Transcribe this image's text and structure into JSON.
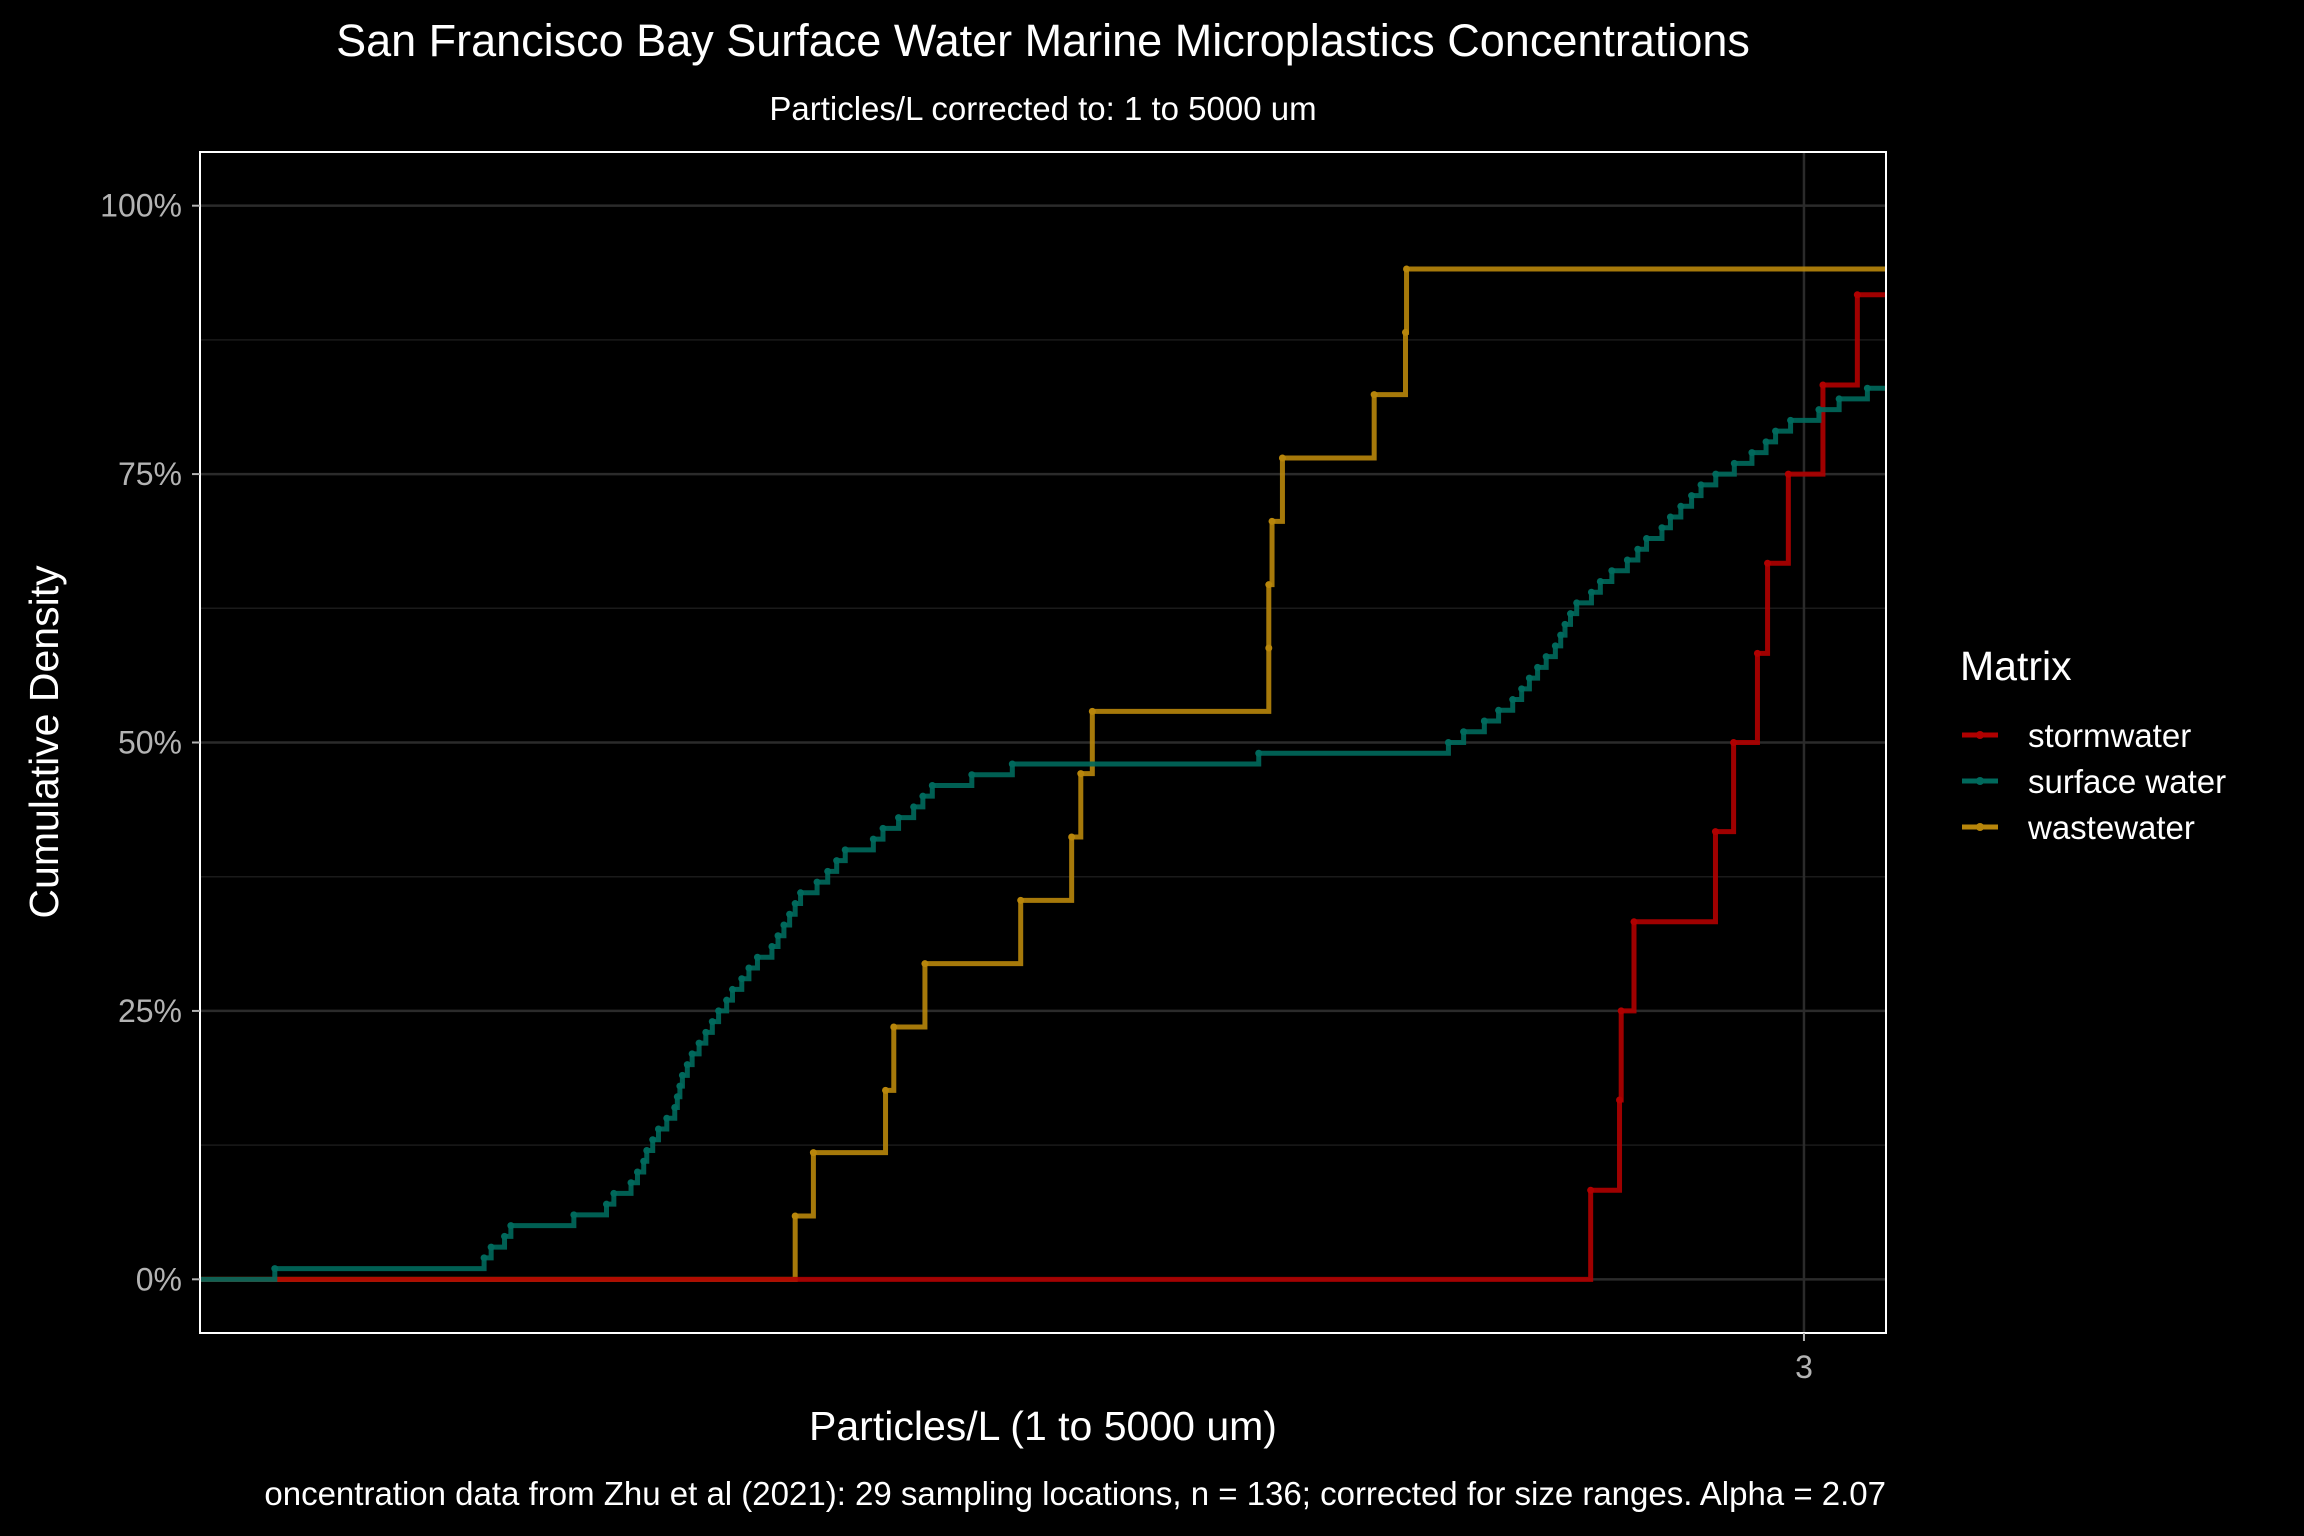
{
  "chart_data": {
    "type": "line",
    "title": "San Francisco Bay Surface Water Marine Microplastics Concentrations",
    "subtitle": "Particles/L corrected to: 1 to 5000 um",
    "xlabel": "Particles/L (1 to 5000 um)",
    "ylabel": "Cumulative Density",
    "caption": "oncentration data from Zhu et al (2021): 29 sampling locations, n = 136; corrected for size ranges. Alpha =  2.07",
    "x_scale": "log10",
    "xlim": [
      0.00057,
      4.65
    ],
    "ylim": [
      -0.05,
      1.05
    ],
    "x_ticks": [
      {
        "value": 3,
        "label": "3"
      }
    ],
    "y_ticks": [
      {
        "value": 0,
        "label": "0%"
      },
      {
        "value": 0.25,
        "label": "25%"
      },
      {
        "value": 0.5,
        "label": "50%"
      },
      {
        "value": 0.75,
        "label": "75%"
      },
      {
        "value": 1,
        "label": "100%"
      }
    ],
    "grid": true,
    "legend": {
      "title": "Matrix",
      "position": "right"
    },
    "series": [
      {
        "name": "stormwater",
        "color": "#b00000",
        "x": [
          0.96,
          1.12,
          1.13,
          1.21,
          1.87,
          2.06,
          2.34,
          2.47,
          2.76,
          3.32,
          3.99
        ],
        "y": [
          0.083,
          0.167,
          0.25,
          0.333,
          0.417,
          0.5,
          0.583,
          0.667,
          0.75,
          0.833,
          0.917
        ]
      },
      {
        "name": "surface water",
        "color": "#00695c",
        "x": [
          0.00085,
          0.0026,
          0.0027,
          0.0029,
          0.003,
          0.0042,
          0.005,
          0.0052,
          0.0057,
          0.0059,
          0.0061,
          0.0062,
          0.0064,
          0.0066,
          0.0069,
          0.0072,
          0.0073,
          0.0074,
          0.0075,
          0.0077,
          0.0079,
          0.0082,
          0.0085,
          0.0088,
          0.0091,
          0.0095,
          0.0098,
          0.0103,
          0.0107,
          0.0112,
          0.0121,
          0.0125,
          0.0129,
          0.0133,
          0.0137,
          0.0141,
          0.0154,
          0.0163,
          0.0171,
          0.0179,
          0.0208,
          0.0219,
          0.0238,
          0.0258,
          0.0271,
          0.0285,
          0.0352,
          0.0437,
          0.163,
          0.449,
          0.487,
          0.544,
          0.587,
          0.633,
          0.664,
          0.692,
          0.723,
          0.757,
          0.795,
          0.818,
          0.837,
          0.862,
          0.891,
          0.964,
          1.011,
          1.075,
          1.168,
          1.235,
          1.294,
          1.405,
          1.47,
          1.554,
          1.646,
          1.731,
          1.873,
          2.068,
          2.272,
          2.45,
          2.578,
          2.793,
          3.25,
          3.62,
          4.21
        ],
        "y": [
          0.01,
          0.02,
          0.03,
          0.04,
          0.05,
          0.06,
          0.07,
          0.08,
          0.09,
          0.1,
          0.11,
          0.12,
          0.13,
          0.14,
          0.15,
          0.16,
          0.17,
          0.18,
          0.19,
          0.2,
          0.21,
          0.22,
          0.23,
          0.24,
          0.25,
          0.26,
          0.27,
          0.28,
          0.29,
          0.3,
          0.31,
          0.32,
          0.33,
          0.34,
          0.35,
          0.36,
          0.37,
          0.38,
          0.39,
          0.4,
          0.41,
          0.42,
          0.43,
          0.44,
          0.45,
          0.46,
          0.47,
          0.48,
          0.49,
          0.5,
          0.51,
          0.52,
          0.53,
          0.54,
          0.55,
          0.56,
          0.57,
          0.58,
          0.59,
          0.6,
          0.61,
          0.62,
          0.63,
          0.64,
          0.65,
          0.66,
          0.67,
          0.68,
          0.69,
          0.7,
          0.71,
          0.72,
          0.73,
          0.74,
          0.75,
          0.76,
          0.77,
          0.78,
          0.79,
          0.8,
          0.81,
          0.82,
          0.83
        ]
      },
      {
        "name": "wastewater",
        "color": "#b8860b",
        "x": [
          0.0137,
          0.0151,
          0.0222,
          0.0232,
          0.0274,
          0.0457,
          0.06,
          0.063,
          0.067,
          0.172,
          0.172,
          0.175,
          0.185,
          0.302,
          0.357,
          0.359
        ],
        "y": [
          0.059,
          0.118,
          0.176,
          0.235,
          0.294,
          0.353,
          0.412,
          0.471,
          0.529,
          0.588,
          0.647,
          0.706,
          0.765,
          0.824,
          0.882,
          0.941
        ]
      }
    ]
  }
}
